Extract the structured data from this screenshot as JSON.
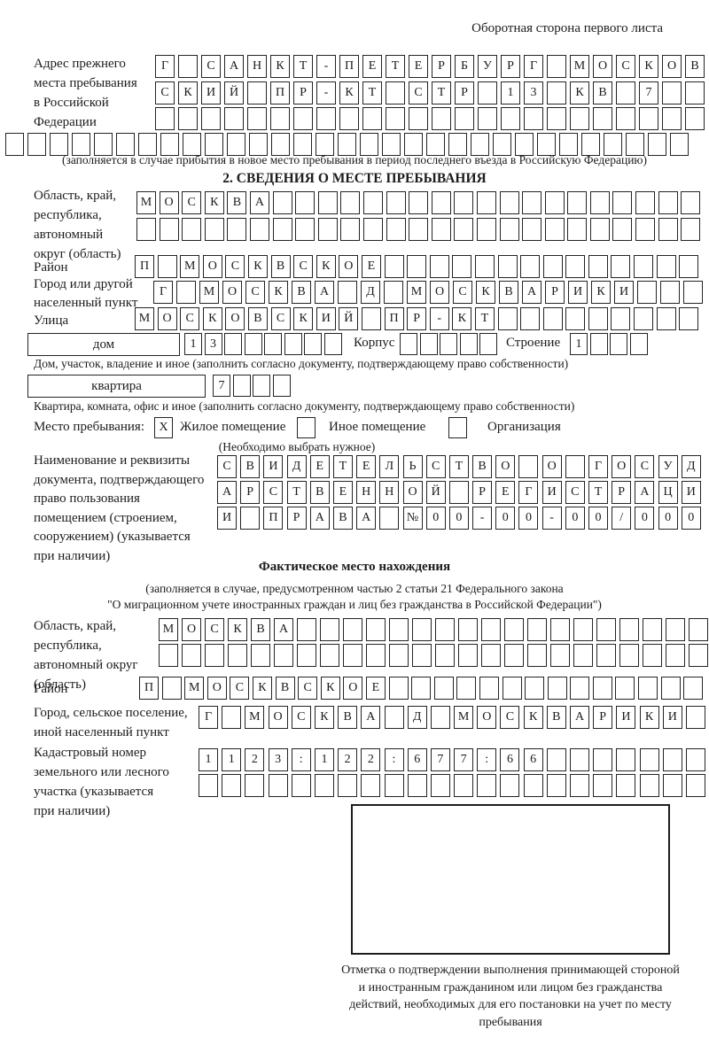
{
  "page": {
    "corner_note": "Оборотная сторона первого листа"
  },
  "prev_address": {
    "label": "Адрес прежнего\nместа пребывания\nв Российской\nФедерации",
    "row1": "Г САНКТ-ПЕТЕРБУРГ МОСКОВ",
    "row2": "СКИЙ ПР-КТ СТР 13 КВ 7  ",
    "row3": "                        ",
    "row4": "                               ",
    "note": "(заполняется в случае прибытия в новое место пребывания в период последнего въезда в Российскую Федерацию)"
  },
  "section2": {
    "title": "2. СВЕДЕНИЯ О МЕСТЕ ПРЕБЫВАНИЯ",
    "oblast": {
      "label": "Область, край,\nреспублика,\nавтономный\nокруг (область)",
      "row1": "МОСКВА                   ",
      "row2": "                         "
    },
    "rayon": {
      "label": "Район",
      "row": "П МОСКВСКОЕ              "
    },
    "gorod": {
      "label": "Город или другой\nнаселенный пункт",
      "row": "Г МОСКВА Д МОСКВАРИКИ   "
    },
    "ulitsa": {
      "label": "Улица",
      "row": "МОСКОВСКИЙ ПР-КТ         "
    },
    "dom": {
      "box_label": "дом",
      "cells": "13      ",
      "korpus_label": "Корпус",
      "korpus_cells": "     ",
      "stroenie_label": "Строение",
      "stroenie_cells": "1   ",
      "note": "Дом, участок, владение и иное (заполнить согласно документу, подтверждающему право собственности)"
    },
    "kvartira": {
      "box_label": "квартира",
      "cells": "7   ",
      "note": "Квартира, комната, офис и иное (заполнить согласно документу, подтверждающему право собственности)"
    },
    "mesto": {
      "label": "Место пребывания:",
      "mark1": "X",
      "opt1": "Жилое помещение",
      "mark2": "",
      "opt2": "Иное помещение",
      "mark3": "",
      "opt3": "Организация",
      "note": "(Необходимо выбрать нужное)"
    },
    "document": {
      "label": "Наименование и реквизиты\nдокумента, подтверждающего\nправо пользования\nпомещением (строением,\nсооружением) (указывается\nпри наличии)",
      "row1": "СВИДЕТЕЛЬСТВО О ГОСУД",
      "row2": "АРСТВЕННОЙ РЕГИСТРАЦИ",
      "row3": "И ПРАВА №00-00-00/000"
    }
  },
  "fact": {
    "title": "Фактическое место нахождения",
    "note1": "(заполняется в случае, предусмотренном частью 2 статьи 21 Федерального закона",
    "note2": "\"О миграционном учете иностранных граждан и лиц без гражданства в Российской Федерации\")",
    "oblast": {
      "label": "Область, край,\nреспублика,\nавтономный округ\n(область)",
      "row1": "МОСКВА                  ",
      "row2": "                        "
    },
    "rayon": {
      "label": "Район",
      "row": "П МОСКВСКОЕ              "
    },
    "gorod": {
      "label": "Город, сельское поселение,\nиной населенный пункт",
      "row": "Г МОСКВА Д МОСКВАРИКИ "
    },
    "kadastr": {
      "label": "Кадастровый номер\nземельного или лесного\nучастка (указывается\nпри наличии)",
      "row1": "1123:122:677:66       ",
      "row2": "                      "
    }
  },
  "stamp": {
    "caption": "Отметка о подтверждении выполнения принимающей стороной и иностранным гражданином или лицом без гражданства действий, необходимых для его постановки на учет по месту пребывания"
  }
}
